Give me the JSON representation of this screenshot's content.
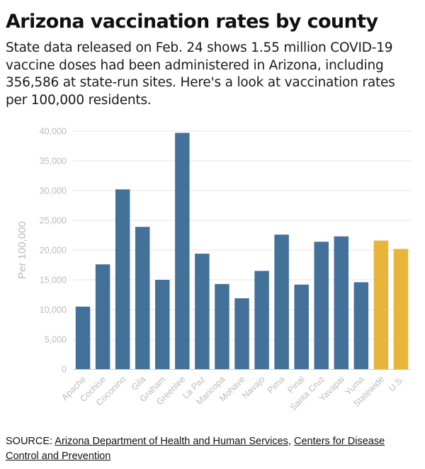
{
  "title": "Arizona vaccination rates by county",
  "subtitle": "State data released on Feb. 24 shows 1.55 million COVID-19 vaccine doses had been administered in Arizona, including 356,586 at state-run sites. Here's a look at vaccination rates per 100,000 residents.",
  "source": {
    "prefix": "SOURCE: ",
    "link1": "Arizona Department of Health and Human Services",
    "separator": ", ",
    "link2": "Centers for Disease Control and Prevention"
  },
  "colors": {
    "county": "#44719a",
    "aggregate": "#e8b53a",
    "grid": "#e6e6e6",
    "axis": "#cccccc",
    "label": "#bbbbbb"
  },
  "chart_data": {
    "type": "bar",
    "title": "",
    "xlabel": "",
    "ylabel": "Per 100,000",
    "ylim": [
      0,
      40000
    ],
    "yticks": [
      0,
      5000,
      10000,
      15000,
      20000,
      25000,
      30000,
      35000,
      40000
    ],
    "ytick_labels": [
      "0",
      "5,000",
      "10,000",
      "15,000",
      "20,000",
      "25,000",
      "30,000",
      "35,000",
      "40,000"
    ],
    "grid": true,
    "categories": [
      "Apache",
      "Cochise",
      "Coconino",
      "Gila",
      "Graham",
      "Greenlee",
      "La Paz",
      "Maricopa",
      "Mohave",
      "Navajo",
      "Pima",
      "Pinal",
      "Santa Cruz",
      "Yavapai",
      "Yuma",
      "Statewide",
      "U.S."
    ],
    "values": [
      10500,
      17600,
      30200,
      23900,
      15000,
      39700,
      19400,
      14300,
      11900,
      16500,
      22600,
      14200,
      21400,
      22300,
      14600,
      21600,
      20200
    ],
    "bar_groups": [
      "county",
      "county",
      "county",
      "county",
      "county",
      "county",
      "county",
      "county",
      "county",
      "county",
      "county",
      "county",
      "county",
      "county",
      "county",
      "aggregate",
      "aggregate"
    ]
  }
}
